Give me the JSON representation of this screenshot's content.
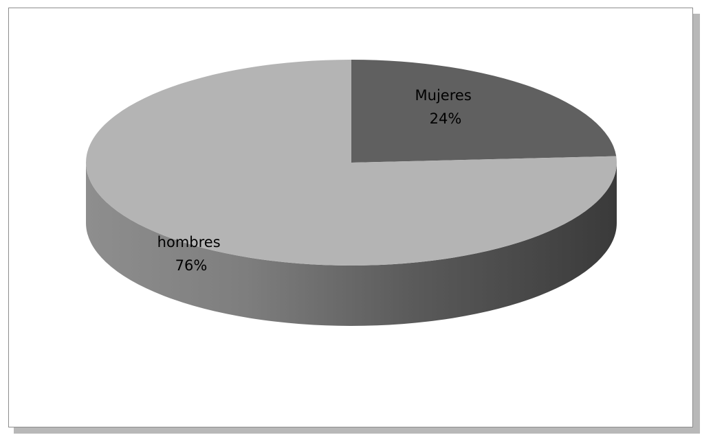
{
  "chart_data": {
    "type": "pie",
    "style": "3d",
    "start_angle_deg": 90,
    "direction": "clockwise",
    "slices": [
      {
        "label": "Mujeres",
        "percent_label": "24%",
        "value": 24,
        "color": "#606060",
        "side_color": "#3f3f3f"
      },
      {
        "label": "hombres",
        "percent_label": "76%",
        "value": 76,
        "color": "#b4b4b4",
        "side_color": "#808080"
      }
    ],
    "legend": "none"
  }
}
